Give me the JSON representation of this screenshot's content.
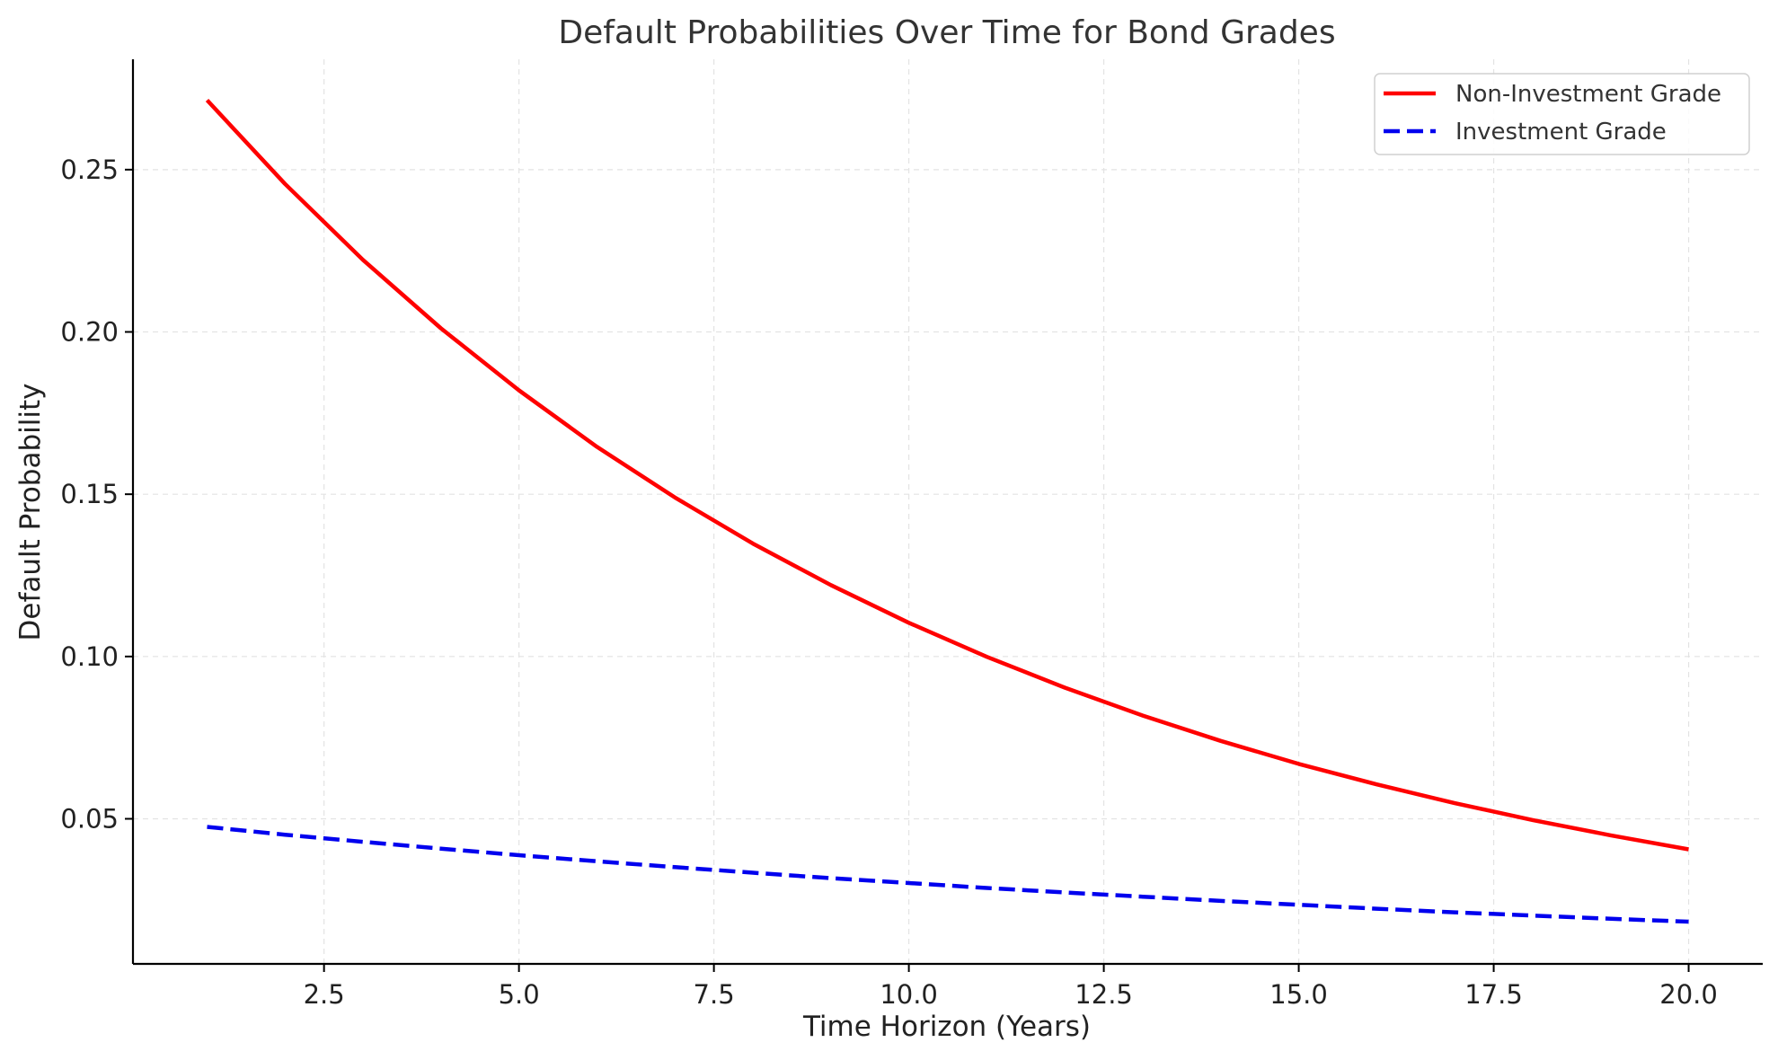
{
  "chart_data": {
    "type": "line",
    "title": "Default Probabilities Over Time for Bond Grades",
    "xlabel": "Time Horizon (Years)",
    "ylabel": "Default Probability",
    "xlim": [
      0.05,
      20.95
    ],
    "ylim": [
      0.0053,
      0.284
    ],
    "xticks": [
      2.5,
      5.0,
      7.5,
      10.0,
      12.5,
      15.0,
      17.5,
      20.0
    ],
    "xtick_labels": [
      "2.5",
      "5.0",
      "7.5",
      "10.0",
      "12.5",
      "15.0",
      "17.5",
      "20.0"
    ],
    "yticks": [
      0.05,
      0.1,
      0.15,
      0.2,
      0.25
    ],
    "ytick_labels": [
      "0.05",
      "0.10",
      "0.15",
      "0.20",
      "0.25"
    ],
    "grid": true,
    "legend_position": "top-right",
    "x": [
      1,
      2,
      3,
      4,
      5,
      6,
      7,
      8,
      9,
      10,
      11,
      12,
      13,
      14,
      15,
      16,
      17,
      18,
      19,
      20
    ],
    "series": [
      {
        "name": "Non-Investment Grade",
        "color": "#ff0000",
        "line_style": "solid",
        "values": [
          0.2714,
          0.2456,
          0.2222,
          0.2011,
          0.182,
          0.1646,
          0.149,
          0.1348,
          0.122,
          0.1104,
          0.0999,
          0.0904,
          0.0818,
          0.074,
          0.0669,
          0.0606,
          0.0548,
          0.0496,
          0.0449,
          0.0406
        ]
      },
      {
        "name": "Investment Grade",
        "color": "#0000ee",
        "line_style": "dashed",
        "values": [
          0.0475,
          0.0451,
          0.0429,
          0.0408,
          0.0388,
          0.0369,
          0.0351,
          0.0334,
          0.0317,
          0.0302,
          0.0287,
          0.0273,
          0.026,
          0.0247,
          0.0235,
          0.0223,
          0.0212,
          0.0202,
          0.0192,
          0.0183
        ]
      }
    ]
  }
}
